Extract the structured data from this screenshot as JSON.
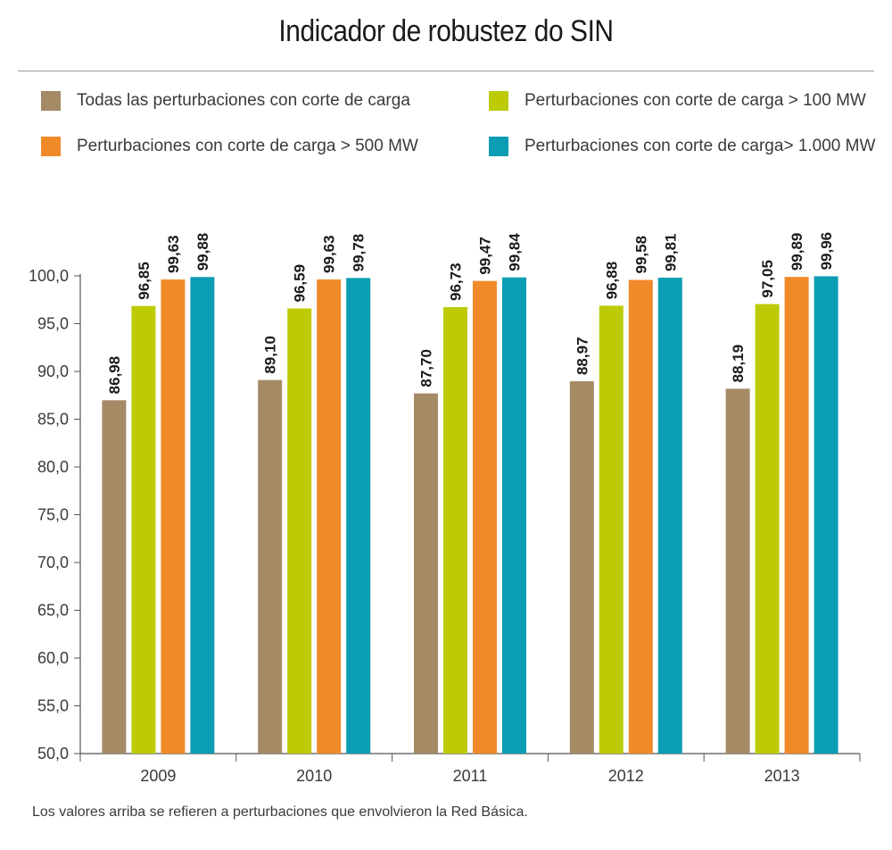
{
  "title": "Indicador de robustez do SIN",
  "footnote": "Los valores arriba se refieren a perturbaciones que envolvieron la Red Básica.",
  "colors": {
    "all": "#a58a66",
    "gt100": "#bccb05",
    "gt500": "#f08a28",
    "gt1000": "#0b9db3"
  },
  "legend": [
    {
      "label": "Todas las perturbaciones con corte de carga",
      "color": "#a58a66"
    },
    {
      "label": "Perturbaciones con corte de carga > 100 MW",
      "color": "#bccb05"
    },
    {
      "label": "Perturbaciones con corte de carga > 500 MW",
      "color": "#f08a28"
    },
    {
      "label": "Perturbaciones con corte de carga> 1.000 MW",
      "color": "#0b9db3"
    }
  ],
  "chart_data": {
    "type": "bar",
    "title": "Indicador de robustez do SIN",
    "xlabel": "",
    "ylabel": "",
    "categories": [
      "2009",
      "2010",
      "2011",
      "2012",
      "2013"
    ],
    "ylim": [
      50,
      100
    ],
    "yticks": [
      "50,0",
      "55,0",
      "60,0",
      "65,0",
      "70,0",
      "75,0",
      "80,0",
      "85,0",
      "90,0",
      "95,0",
      "100,0"
    ],
    "grid": false,
    "legend_position": "top",
    "series": [
      {
        "name": "Todas las perturbaciones con corte de carga",
        "color": "#a58a66",
        "values": [
          86.98,
          89.1,
          87.7,
          88.97,
          88.19
        ],
        "labels": [
          "86,98",
          "89,10",
          "87,70",
          "88,97",
          "88,19"
        ]
      },
      {
        "name": "Perturbaciones con corte de carga > 100 MW",
        "color": "#bccb05",
        "values": [
          96.85,
          96.59,
          96.73,
          96.88,
          97.05
        ],
        "labels": [
          "96,85",
          "96,59",
          "96,73",
          "96,88",
          "97,05"
        ]
      },
      {
        "name": "Perturbaciones con corte de carga > 500 MW",
        "color": "#f08a28",
        "values": [
          99.63,
          99.63,
          99.47,
          99.58,
          99.89
        ],
        "labels": [
          "99,63",
          "99,63",
          "99,47",
          "99,58",
          "99,89"
        ]
      },
      {
        "name": "Perturbaciones con corte de carga> 1.000 MW",
        "color": "#0b9db3",
        "values": [
          99.88,
          99.78,
          99.84,
          99.81,
          99.96
        ],
        "labels": [
          "99,88",
          "99,78",
          "99,84",
          "99,81",
          "99,96"
        ]
      }
    ]
  }
}
